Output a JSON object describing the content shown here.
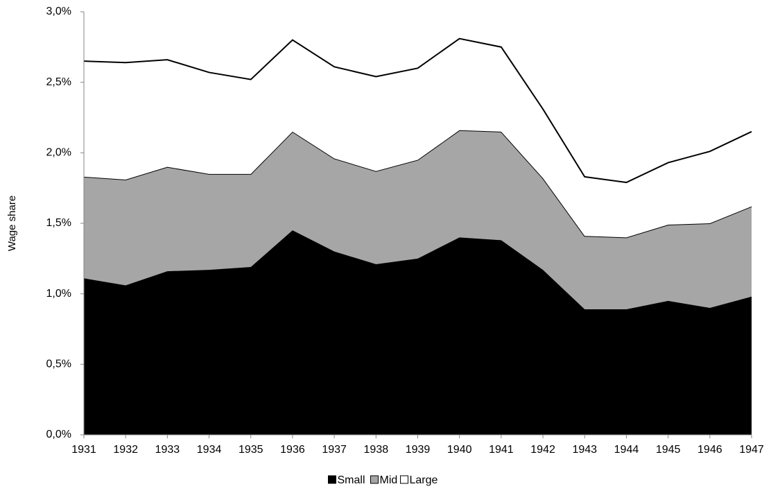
{
  "chart_data": {
    "type": "stacked_area",
    "y_label": "Wage share",
    "categories": [
      "1931",
      "1932",
      "1933",
      "1934",
      "1935",
      "1936",
      "1937",
      "1938",
      "1939",
      "1940",
      "1941",
      "1942",
      "1943",
      "1944",
      "1945",
      "1946",
      "1947"
    ],
    "series": [
      {
        "name": "Small",
        "color": "#000000",
        "values": [
          1.11,
          1.06,
          1.16,
          1.17,
          1.19,
          1.45,
          1.3,
          1.21,
          1.25,
          1.4,
          1.38,
          1.17,
          0.89,
          0.89,
          0.95,
          0.9,
          0.98
        ]
      },
      {
        "name": "Mid",
        "color": "#a6a6a6",
        "values": [
          0.72,
          0.75,
          0.74,
          0.68,
          0.66,
          0.7,
          0.66,
          0.66,
          0.7,
          0.76,
          0.77,
          0.65,
          0.52,
          0.51,
          0.54,
          0.6,
          0.64
        ]
      },
      {
        "name": "Large",
        "color": "#ffffff",
        "values": [
          0.82,
          0.83,
          0.76,
          0.72,
          0.67,
          0.65,
          0.65,
          0.67,
          0.65,
          0.65,
          0.6,
          0.49,
          0.42,
          0.39,
          0.44,
          0.51,
          0.53
        ]
      }
    ],
    "ylim": [
      0,
      3
    ],
    "yticks": [
      {
        "value": 0,
        "label": "0,0%"
      },
      {
        "value": 0.5,
        "label": "0,5%"
      },
      {
        "value": 1,
        "label": "1,0%"
      },
      {
        "value": 1.5,
        "label": "1,5%"
      },
      {
        "value": 2,
        "label": "2,0%"
      },
      {
        "value": 2.5,
        "label": "2,5%"
      },
      {
        "value": 3,
        "label": "3,0%"
      }
    ],
    "legend": "bottom"
  }
}
